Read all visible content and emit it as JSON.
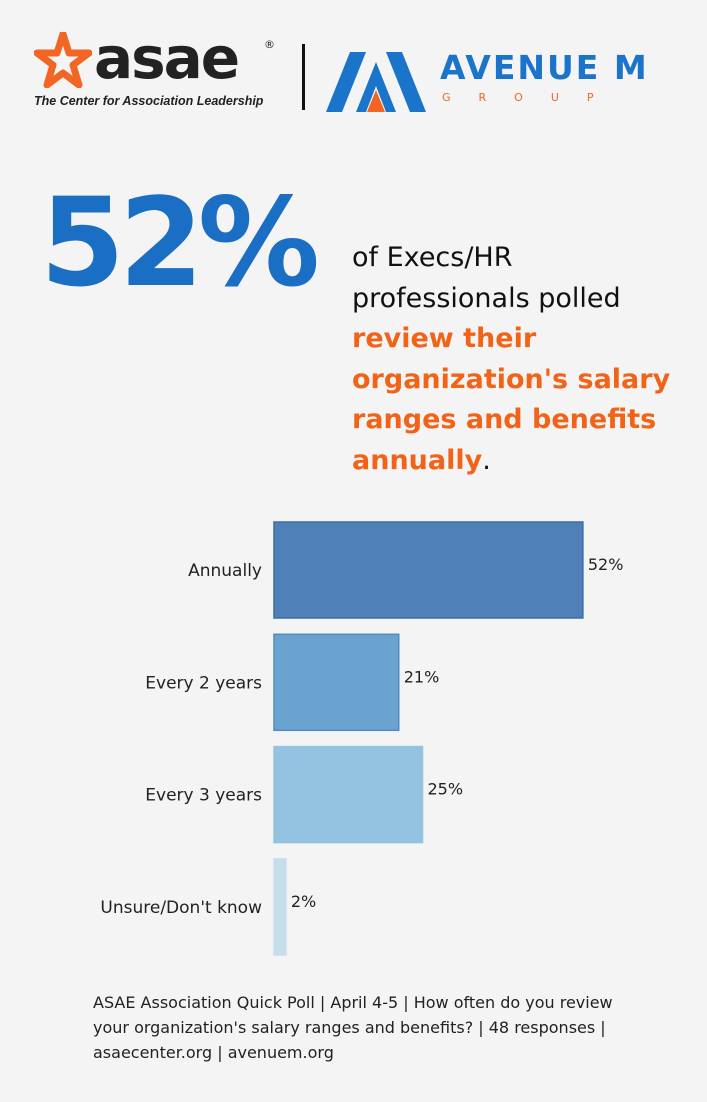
{
  "header": {
    "asae_logo": {
      "wordmark": "asae",
      "registered": "®",
      "tagline": "The Center for Association Leadership"
    },
    "partner_logo": {
      "wordmark": "AVENUE M",
      "subtitle": "GROUP"
    },
    "colors": {
      "asae_orange": "#f26522",
      "avenue_blue": "#1a74c9"
    }
  },
  "headline": {
    "stat": "52%",
    "text_plain": "of Execs/HR professionals polled",
    "text_highlight": "review their organization's salary ranges and benefits annually",
    "text_end": ".",
    "stat_color": "#1a6fc4",
    "highlight_color": "#f26318"
  },
  "chart_data": {
    "type": "bar",
    "orientation": "horizontal",
    "categories": [
      "Annually",
      "Every 2 years",
      "Every 3 years",
      "Unsure/Don't know"
    ],
    "values": [
      52,
      21,
      25,
      2
    ],
    "value_labels": [
      "52%",
      "21%",
      "25%",
      "2%"
    ],
    "colors": [
      "#4f81b8",
      "#6aa3d0",
      "#93c3e0",
      "#c6deec"
    ],
    "xlim": [
      0,
      100
    ],
    "unit": "%",
    "grid": false,
    "legend": "none"
  },
  "footnote": "ASAE Association Quick Poll | April 4-5 | How often do you review your organization's salary ranges and benefits? | 48 responses | asaecenter.org | avenuem.org"
}
